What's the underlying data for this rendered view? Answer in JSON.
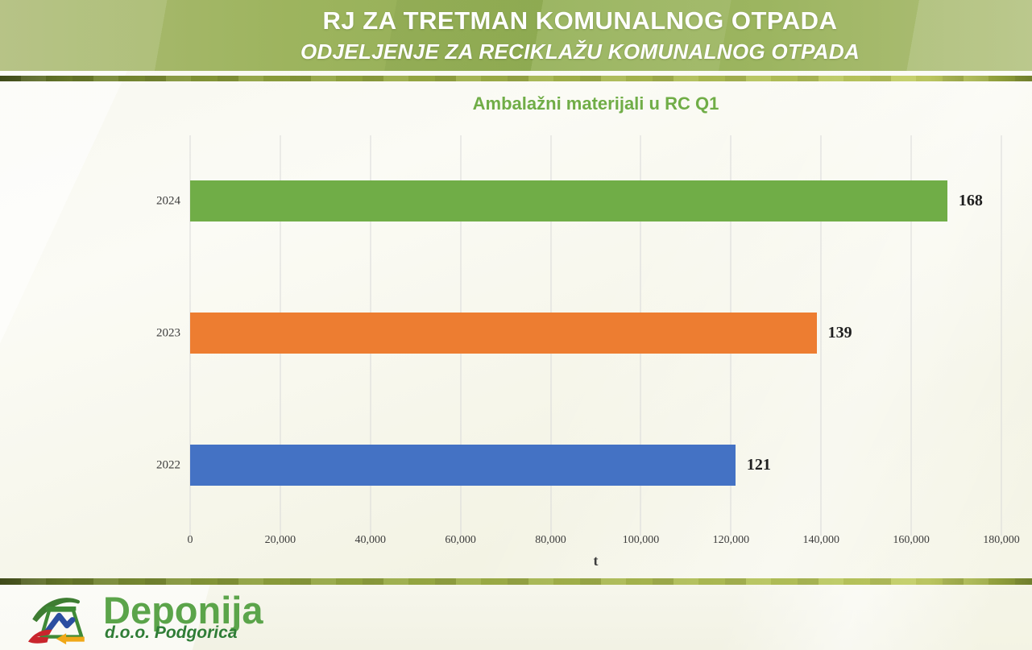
{
  "header": {
    "title": "RJ ZA TRETMAN KOMUNALNOG OTPADA",
    "subtitle": "ODJELJENJE ZA RECIKLAŽU KOMUNALNOG OTPADA"
  },
  "chart_data": {
    "type": "bar",
    "orientation": "horizontal",
    "title": "Ambalažni materijali u RC Q1",
    "categories": [
      "2024",
      "2023",
      "2022"
    ],
    "values": [
      168000,
      139000,
      121000
    ],
    "data_labels": [
      "168",
      "139",
      "121"
    ],
    "series_colors": [
      "#70ad47",
      "#ed7d31",
      "#4472c4"
    ],
    "xlabel": "t",
    "xlim": [
      0,
      180000
    ],
    "x_ticks": [
      0,
      20000,
      40000,
      60000,
      80000,
      100000,
      120000,
      140000,
      160000,
      180000
    ],
    "x_tick_labels": [
      "0",
      "20,000",
      "40,000",
      "60,000",
      "80,000",
      "100,000",
      "120,000",
      "140,000",
      "160,000",
      "180,000"
    ],
    "grid": true,
    "legend": false,
    "gridline_color": "#d9d9d9",
    "title_color": "#70ad47"
  },
  "footer": {
    "logo_text": "Deponija",
    "logo_subtext": "d.o.o. Podgorica"
  },
  "colors": {
    "header_green": "#94b056",
    "stripe_olive": "#8a9c3a",
    "background": "#f6f6ec",
    "logo_green": "#5ba44a",
    "logo_dark_green": "#2f7d36",
    "logo_red": "#c9252c",
    "logo_yellow": "#f0a818",
    "logo_blue": "#2b4ea0"
  }
}
